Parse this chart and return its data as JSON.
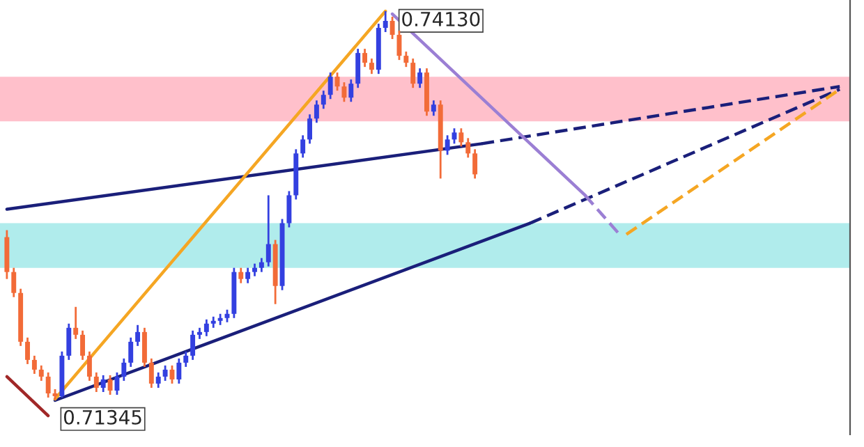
{
  "chart_data": {
    "type": "candlestick",
    "categories": [
      null,
      null,
      null,
      null,
      null,
      null,
      null,
      null,
      null,
      null,
      null,
      null,
      null,
      null,
      null,
      null,
      null,
      null,
      null,
      null,
      null,
      null,
      null,
      null,
      null,
      null,
      null,
      null,
      null,
      null,
      null,
      null,
      null,
      null,
      null,
      null,
      null,
      null,
      null,
      null,
      null,
      null,
      null,
      null,
      null,
      null,
      null,
      null,
      null,
      null,
      null,
      null,
      null,
      null,
      null,
      null,
      null,
      null,
      null,
      null,
      null,
      null,
      null,
      null,
      null,
      null,
      null,
      null,
      null,
      null,
      null,
      null,
      null,
      null,
      null,
      null,
      null,
      null,
      null,
      null,
      null,
      null,
      null,
      null,
      null,
      null,
      null,
      null,
      null,
      null,
      null,
      null,
      null,
      null,
      null,
      null,
      null,
      null,
      null,
      null,
      null,
      null,
      null,
      null,
      null,
      null,
      null,
      null,
      null,
      null,
      null,
      null,
      null,
      null,
      null,
      null,
      null,
      null,
      null,
      null,
      null,
      null
    ],
    "ohlc": [
      [
        0.7251,
        0.7256,
        0.7221,
        0.7226
      ],
      [
        0.7226,
        0.7229,
        0.7208,
        0.7211
      ],
      [
        0.7211,
        0.7214,
        0.7173,
        0.7176
      ],
      [
        0.7176,
        0.7179,
        0.716,
        0.7163
      ],
      [
        0.7163,
        0.7166,
        0.7153,
        0.7156
      ],
      [
        0.7156,
        0.7159,
        0.7148,
        0.7151
      ],
      [
        0.7151,
        0.7154,
        0.7136,
        0.7139
      ],
      [
        0.7139,
        0.7142,
        0.71345,
        0.7137
      ],
      [
        0.7137,
        0.7169,
        0.7136,
        0.7166
      ],
      [
        0.7166,
        0.7189,
        0.7163,
        0.7186
      ],
      [
        0.7186,
        0.7201,
        0.7178,
        0.7181
      ],
      [
        0.7181,
        0.7184,
        0.7163,
        0.7166
      ],
      [
        0.7166,
        0.7169,
        0.7148,
        0.7151
      ],
      [
        0.7151,
        0.7154,
        0.714,
        0.7143
      ],
      [
        0.7143,
        0.7152,
        0.714,
        0.7149
      ],
      [
        0.7149,
        0.7152,
        0.7138,
        0.7141
      ],
      [
        0.7141,
        0.7154,
        0.7138,
        0.7151
      ],
      [
        0.7151,
        0.7164,
        0.7148,
        0.7161
      ],
      [
        0.7161,
        0.7179,
        0.7158,
        0.7176
      ],
      [
        0.7176,
        0.7188,
        0.7173,
        0.7183
      ],
      [
        0.7183,
        0.7186,
        0.7158,
        0.7161
      ],
      [
        0.7161,
        0.7164,
        0.7143,
        0.7146
      ],
      [
        0.7146,
        0.7154,
        0.7143,
        0.7151
      ],
      [
        0.7151,
        0.7159,
        0.7148,
        0.7156
      ],
      [
        0.7156,
        0.7159,
        0.7146,
        0.7149
      ],
      [
        0.7149,
        0.7164,
        0.7146,
        0.7161
      ],
      [
        0.7161,
        0.7169,
        0.7158,
        0.7166
      ],
      [
        0.7166,
        0.7184,
        0.7163,
        0.7181
      ],
      [
        0.7181,
        0.7186,
        0.7178,
        0.7183
      ],
      [
        0.7183,
        0.7192,
        0.718,
        0.7189
      ],
      [
        0.7189,
        0.7194,
        0.7186,
        0.7191
      ],
      [
        0.7191,
        0.7196,
        0.7188,
        0.7193
      ],
      [
        0.7193,
        0.7199,
        0.719,
        0.7196
      ],
      [
        0.7196,
        0.7229,
        0.7193,
        0.7226
      ],
      [
        0.7226,
        0.7229,
        0.7218,
        0.7221
      ],
      [
        0.7221,
        0.7229,
        0.7218,
        0.7226
      ],
      [
        0.7226,
        0.7232,
        0.7223,
        0.7229
      ],
      [
        0.7229,
        0.7236,
        0.7226,
        0.7233
      ],
      [
        0.7233,
        0.7281,
        0.723,
        0.7246
      ],
      [
        0.7246,
        0.7249,
        0.7203,
        0.7216
      ],
      [
        0.7216,
        0.7264,
        0.7213,
        0.7261
      ],
      [
        0.7261,
        0.7284,
        0.7258,
        0.7281
      ],
      [
        0.7281,
        0.7314,
        0.7278,
        0.7311
      ],
      [
        0.7311,
        0.7324,
        0.7308,
        0.7321
      ],
      [
        0.7321,
        0.7339,
        0.7318,
        0.7336
      ],
      [
        0.7336,
        0.7349,
        0.7333,
        0.7346
      ],
      [
        0.7346,
        0.7356,
        0.7343,
        0.7353
      ],
      [
        0.7353,
        0.7369,
        0.735,
        0.7366
      ],
      [
        0.7366,
        0.7369,
        0.7356,
        0.7359
      ],
      [
        0.7359,
        0.7362,
        0.7348,
        0.7351
      ],
      [
        0.7351,
        0.7364,
        0.7348,
        0.7361
      ],
      [
        0.7361,
        0.7386,
        0.7358,
        0.7383
      ],
      [
        0.7383,
        0.7386,
        0.7373,
        0.7376
      ],
      [
        0.7376,
        0.7379,
        0.7368,
        0.7371
      ],
      [
        0.7371,
        0.7404,
        0.7368,
        0.7401
      ],
      [
        0.7401,
        0.7413,
        0.7398,
        0.7406
      ],
      [
        0.7406,
        0.7409,
        0.7393,
        0.7396
      ],
      [
        0.7396,
        0.7399,
        0.7378,
        0.7381
      ],
      [
        0.7381,
        0.7384,
        0.7373,
        0.7376
      ],
      [
        0.7376,
        0.7379,
        0.7358,
        0.7361
      ],
      [
        0.7361,
        0.7372,
        0.7358,
        0.7369
      ],
      [
        0.7369,
        0.7372,
        0.7338,
        0.7341
      ],
      [
        0.7341,
        0.7349,
        0.7338,
        0.7346
      ],
      [
        0.7346,
        0.7349,
        0.7293,
        0.7313
      ],
      [
        0.7313,
        0.7324,
        0.731,
        0.7321
      ],
      [
        0.7321,
        0.7329,
        0.7318,
        0.7326
      ],
      [
        0.7326,
        0.7329,
        0.7316,
        0.7319
      ],
      [
        0.7319,
        0.7322,
        0.7308,
        0.7311
      ],
      [
        0.7311,
        0.7314,
        0.7293,
        0.7296
      ],
      null,
      null,
      null,
      null,
      null,
      null,
      null,
      null,
      null,
      null,
      null,
      null,
      null,
      null,
      null,
      null,
      null,
      null,
      null,
      null,
      null,
      null,
      null,
      null,
      null,
      null,
      null,
      null,
      null,
      null,
      null,
      null,
      null,
      null,
      null,
      null,
      null,
      null,
      null,
      null,
      null,
      null,
      null,
      null,
      null,
      null,
      null,
      null,
      null,
      null,
      null,
      null,
      null
    ],
    "colors": [
      "#f26b38",
      "#f26b38",
      "#f26b38",
      "#f26b38",
      "#f26b38",
      "#f26b38",
      "#f26b38",
      "#f26b38",
      "#3340e0",
      "#3340e0",
      "#f26b38",
      "#f26b38",
      "#f26b38",
      "#f26b38",
      "#3340e0",
      "#f26b38",
      "#3340e0",
      "#3340e0",
      "#3340e0",
      "#3340e0",
      "#f26b38",
      "#f26b38",
      "#3340e0",
      "#3340e0",
      "#f26b38",
      "#3340e0",
      "#3340e0",
      "#3340e0",
      "#3340e0",
      "#3340e0",
      "#3340e0",
      "#3340e0",
      "#3340e0",
      "#3340e0",
      "#f26b38",
      "#3340e0",
      "#3340e0",
      "#3340e0",
      "#3340e0",
      "#f26b38",
      "#3340e0",
      "#3340e0",
      "#3340e0",
      "#3340e0",
      "#3340e0",
      "#3340e0",
      "#3340e0",
      "#3340e0",
      "#f26b38",
      "#f26b38",
      "#3340e0",
      "#3340e0",
      "#f26b38",
      "#f26b38",
      "#3340e0",
      "#3340e0",
      "#f26b38",
      "#f26b38",
      "#f26b38",
      "#f26b38",
      "#3340e0",
      "#f26b38",
      "#3340e0",
      "#f26b38",
      "#3340e0",
      "#3340e0",
      "#f26b38",
      "#f26b38",
      "#f26b38",
      null,
      null,
      null,
      null,
      null,
      null,
      null,
      null,
      null,
      null,
      null,
      null,
      null,
      null,
      null,
      null,
      null,
      null,
      null,
      null,
      null,
      null,
      null,
      null,
      null,
      null,
      null,
      null,
      null,
      null,
      null,
      null,
      null,
      null,
      null,
      null,
      null,
      null,
      null,
      null,
      null,
      null,
      null,
      null,
      null,
      null,
      null,
      null,
      null,
      null,
      null,
      null,
      null
    ],
    "series": [
      {
        "type": "line",
        "color": "#1a1f7a",
        "line_style": "solid",
        "values": [
          0.7271,
          null,
          null,
          null,
          null,
          null,
          null,
          null,
          null,
          null,
          null,
          null,
          null,
          null,
          null,
          null,
          null,
          null,
          null,
          null,
          null,
          null,
          null,
          null,
          null,
          null,
          null,
          null,
          null,
          null,
          null,
          null,
          null,
          null,
          null,
          null,
          null,
          null,
          null,
          null,
          null,
          null,
          null,
          null,
          null,
          null,
          null,
          null,
          null,
          null,
          null,
          null,
          null,
          null,
          null,
          null,
          null,
          null,
          null,
          null,
          null,
          null,
          null,
          null,
          null,
          null,
          null,
          null,
          null,
          0.7318,
          null,
          null,
          null,
          null,
          null,
          null,
          null,
          null,
          null,
          null,
          null,
          null,
          null,
          null,
          null,
          null,
          null,
          null,
          null,
          null,
          null,
          null,
          null,
          null,
          null,
          null,
          null,
          null,
          null,
          null,
          null,
          null,
          null,
          null,
          null,
          null,
          null,
          null,
          null,
          null,
          null,
          null,
          null,
          null,
          null,
          null,
          null,
          null,
          null,
          null,
          null,
          null
        ]
      },
      {
        "type": "line",
        "color": "#1a1f7a",
        "line_style": "dashed",
        "values": [
          null,
          null,
          null,
          null,
          null,
          null,
          null,
          null,
          null,
          null,
          null,
          null,
          null,
          null,
          null,
          null,
          null,
          null,
          null,
          null,
          null,
          null,
          null,
          null,
          null,
          null,
          null,
          null,
          null,
          null,
          null,
          null,
          null,
          null,
          null,
          null,
          null,
          null,
          null,
          null,
          null,
          null,
          null,
          null,
          null,
          null,
          null,
          null,
          null,
          null,
          null,
          null,
          null,
          null,
          null,
          null,
          null,
          null,
          null,
          null,
          null,
          null,
          null,
          null,
          null,
          null,
          null,
          null,
          null,
          0.7318,
          null,
          null,
          null,
          null,
          null,
          null,
          null,
          null,
          null,
          null,
          null,
          null,
          null,
          null,
          null,
          null,
          null,
          null,
          null,
          null,
          null,
          null,
          null,
          null,
          null,
          null,
          null,
          null,
          null,
          null,
          null,
          null,
          null,
          null,
          null,
          null,
          null,
          null,
          null,
          null,
          null,
          null,
          null,
          null,
          null,
          null,
          null,
          null,
          null,
          null,
          null,
          0.7359
        ]
      },
      {
        "type": "line",
        "color": "#1a1f7a",
        "line_style": "solid",
        "values": [
          null,
          null,
          null,
          null,
          null,
          null,
          null,
          0.7134,
          null,
          null,
          null,
          null,
          null,
          null,
          null,
          null,
          null,
          null,
          null,
          null,
          null,
          null,
          null,
          null,
          null,
          null,
          null,
          null,
          null,
          null,
          null,
          null,
          null,
          null,
          null,
          null,
          null,
          null,
          null,
          null,
          null,
          null,
          null,
          null,
          null,
          null,
          null,
          null,
          null,
          null,
          null,
          null,
          null,
          null,
          null,
          null,
          null,
          null,
          null,
          null,
          null,
          null,
          null,
          null,
          null,
          null,
          null,
          null,
          null,
          null,
          null,
          null,
          null,
          null,
          null,
          null,
          0.7261,
          null,
          null,
          null,
          null,
          null,
          null,
          null,
          null,
          null,
          null,
          null,
          null,
          null,
          null,
          null,
          null,
          null,
          null,
          null,
          null,
          null,
          null,
          null,
          null,
          null,
          null,
          null,
          null,
          null,
          null,
          null,
          null,
          null,
          null,
          null,
          null,
          null,
          null,
          null,
          null,
          null,
          null,
          null,
          null,
          null
        ]
      },
      {
        "type": "line",
        "color": "#1a1f7a",
        "line_style": "dashed",
        "values": [
          null,
          null,
          null,
          null,
          null,
          null,
          null,
          null,
          null,
          null,
          null,
          null,
          null,
          null,
          null,
          null,
          null,
          null,
          null,
          null,
          null,
          null,
          null,
          null,
          null,
          null,
          null,
          null,
          null,
          null,
          null,
          null,
          null,
          null,
          null,
          null,
          null,
          null,
          null,
          null,
          null,
          null,
          null,
          null,
          null,
          null,
          null,
          null,
          null,
          null,
          null,
          null,
          null,
          null,
          null,
          null,
          null,
          null,
          null,
          null,
          null,
          null,
          null,
          null,
          null,
          null,
          null,
          null,
          null,
          null,
          null,
          null,
          null,
          null,
          null,
          null,
          0.7261,
          null,
          null,
          null,
          null,
          null,
          null,
          null,
          null,
          null,
          null,
          null,
          null,
          null,
          null,
          null,
          null,
          null,
          null,
          null,
          null,
          null,
          null,
          null,
          null,
          null,
          null,
          null,
          null,
          null,
          null,
          null,
          null,
          null,
          null,
          null,
          null,
          null,
          null,
          null,
          null,
          null,
          null,
          null,
          null,
          0.7357
        ]
      },
      {
        "type": "line",
        "color": "#f5a623",
        "line_style": "solid",
        "values": [
          null,
          null,
          null,
          null,
          null,
          null,
          null,
          0.7135,
          null,
          null,
          null,
          null,
          null,
          null,
          null,
          null,
          null,
          null,
          null,
          null,
          null,
          null,
          null,
          null,
          null,
          null,
          null,
          null,
          null,
          null,
          null,
          null,
          null,
          null,
          null,
          null,
          null,
          null,
          null,
          null,
          null,
          null,
          null,
          null,
          null,
          null,
          null,
          null,
          null,
          null,
          null,
          null,
          null,
          null,
          null,
          0.7413,
          null,
          null,
          null,
          null,
          null,
          null,
          null,
          null,
          null,
          null,
          null,
          null,
          null,
          null,
          null,
          null,
          null,
          null,
          null,
          null,
          null,
          null,
          null,
          null,
          null,
          null,
          null,
          null,
          null,
          null,
          null,
          null,
          null,
          null,
          null,
          null,
          null,
          null,
          null,
          null,
          null,
          null,
          null,
          null,
          null,
          null,
          null,
          null,
          null,
          null,
          null,
          null,
          null,
          null,
          null,
          null,
          null,
          null,
          null,
          null,
          null,
          null,
          null,
          null,
          null,
          null
        ]
      },
      {
        "type": "line",
        "color": "#9b7fd4",
        "line_style": "solid",
        "values": [
          null,
          null,
          null,
          null,
          null,
          null,
          null,
          null,
          null,
          null,
          null,
          null,
          null,
          null,
          null,
          null,
          null,
          null,
          null,
          null,
          null,
          null,
          null,
          null,
          null,
          null,
          null,
          null,
          null,
          null,
          null,
          null,
          null,
          null,
          null,
          null,
          null,
          null,
          null,
          null,
          null,
          null,
          null,
          null,
          null,
          null,
          null,
          null,
          null,
          null,
          null,
          null,
          null,
          null,
          null,
          null,
          0.7411,
          null,
          null,
          null,
          null,
          null,
          null,
          null,
          null,
          null,
          null,
          null,
          null,
          null,
          null,
          null,
          null,
          null,
          null,
          null,
          null,
          null,
          null,
          null,
          null,
          null,
          null,
          null,
          0.7281,
          null,
          null,
          null,
          null,
          null,
          null,
          null,
          null,
          null,
          null,
          null,
          null,
          null,
          null,
          null,
          null,
          null,
          null,
          null,
          null,
          null,
          null,
          null,
          null,
          null,
          null,
          null,
          null,
          null,
          null,
          null,
          null,
          null,
          null,
          null,
          null,
          null
        ]
      },
      {
        "type": "line",
        "color": "#9b7fd4",
        "line_style": "dashed",
        "values": [
          null,
          null,
          null,
          null,
          null,
          null,
          null,
          null,
          null,
          null,
          null,
          null,
          null,
          null,
          null,
          null,
          null,
          null,
          null,
          null,
          null,
          null,
          null,
          null,
          null,
          null,
          null,
          null,
          null,
          null,
          null,
          null,
          null,
          null,
          null,
          null,
          null,
          null,
          null,
          null,
          null,
          null,
          null,
          null,
          null,
          null,
          null,
          null,
          null,
          null,
          null,
          null,
          null,
          null,
          null,
          null,
          null,
          null,
          null,
          null,
          null,
          null,
          null,
          null,
          null,
          null,
          null,
          null,
          null,
          null,
          null,
          null,
          null,
          null,
          null,
          null,
          null,
          null,
          null,
          null,
          null,
          null,
          null,
          null,
          0.7281,
          null,
          null,
          null,
          null,
          0.7253,
          null,
          null,
          null,
          null,
          null,
          null,
          null,
          null,
          null,
          null,
          null,
          null,
          null,
          null,
          null,
          null,
          null,
          null,
          null,
          null,
          null,
          null,
          null,
          null,
          null,
          null,
          null,
          null,
          null,
          null,
          null,
          null
        ]
      },
      {
        "type": "line",
        "color": "#f5a623",
        "line_style": "dashed",
        "values": [
          null,
          null,
          null,
          null,
          null,
          null,
          null,
          null,
          null,
          null,
          null,
          null,
          null,
          null,
          null,
          null,
          null,
          null,
          null,
          null,
          null,
          null,
          null,
          null,
          null,
          null,
          null,
          null,
          null,
          null,
          null,
          null,
          null,
          null,
          null,
          null,
          null,
          null,
          null,
          null,
          null,
          null,
          null,
          null,
          null,
          null,
          null,
          null,
          null,
          null,
          null,
          null,
          null,
          null,
          null,
          null,
          null,
          null,
          null,
          null,
          null,
          null,
          null,
          null,
          null,
          null,
          null,
          null,
          null,
          null,
          null,
          null,
          null,
          null,
          null,
          null,
          null,
          null,
          null,
          null,
          null,
          null,
          null,
          null,
          null,
          null,
          null,
          null,
          null,
          null,
          0.7253,
          null,
          null,
          null,
          null,
          null,
          null,
          null,
          null,
          null,
          null,
          null,
          null,
          null,
          null,
          null,
          null,
          null,
          null,
          null,
          null,
          null,
          null,
          null,
          null,
          null,
          null,
          null,
          null,
          null,
          null,
          0.7357
        ]
      },
      {
        "type": "line",
        "color": "#a02828",
        "line_style": "solid",
        "values": [
          0.7151,
          null,
          null,
          null,
          null,
          null,
          0.7123,
          null,
          null,
          null,
          null,
          null,
          null,
          null,
          null,
          null,
          null,
          null,
          null,
          null,
          null,
          null,
          null,
          null,
          null,
          null,
          null,
          null,
          null,
          null,
          null,
          null,
          null,
          null,
          null,
          null,
          null,
          null,
          null,
          null,
          null,
          null,
          null,
          null,
          null,
          null,
          null,
          null,
          null,
          null,
          null,
          null,
          null,
          null,
          null,
          null,
          null,
          null,
          null,
          null,
          null,
          null,
          null,
          null,
          null,
          null,
          null,
          null,
          null,
          null,
          null,
          null,
          null,
          null,
          null,
          null,
          null,
          null,
          null,
          null,
          null,
          null,
          null,
          null,
          null,
          null,
          null,
          null,
          null,
          null,
          null,
          null,
          null,
          null,
          null,
          null,
          null,
          null,
          null,
          null,
          null,
          null,
          null,
          null,
          null,
          null,
          null,
          null,
          null,
          null,
          null,
          null,
          null,
          null,
          null,
          null,
          null,
          null,
          null,
          null,
          null,
          null
        ]
      }
    ],
    "bands": [
      {
        "axis": "y",
        "from": 0.7334,
        "to": 0.7366,
        "color": "#ffc0cb"
      },
      {
        "axis": "y",
        "from": 0.7229,
        "to": 0.7261,
        "color": "#b0ecec"
      }
    ],
    "annotations": [
      "0.74130",
      "0.71345"
    ]
  }
}
